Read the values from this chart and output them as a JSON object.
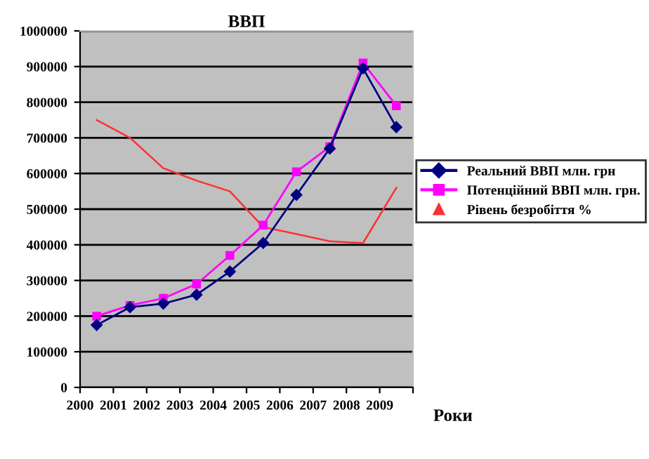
{
  "chart_data": {
    "type": "line",
    "title": "ВВП",
    "xlabel": "Роки",
    "xlim": [
      2000,
      2010
    ],
    "xticks": [
      2000,
      2001,
      2002,
      2003,
      2004,
      2005,
      2006,
      2007,
      2008,
      2009,
      {
        "value": 2010,
        "label": null
      }
    ],
    "ylim": [
      0,
      1000000
    ],
    "yticks": [
      0,
      100000,
      200000,
      300000,
      400000,
      500000,
      600000,
      700000,
      800000,
      900000,
      1000000
    ],
    "grid": "y",
    "legend": "right",
    "series": [
      {
        "name": "Реальний ВВП млн. грн",
        "color": "#000080",
        "marker": "diamond",
        "x": [
          2000.5,
          2001.5,
          2002.5,
          2003.5,
          2004.5,
          2005.5,
          2006.5,
          2007.5,
          2008.5,
          2009.5
        ],
        "values": [
          175000,
          225000,
          235000,
          260000,
          325000,
          405000,
          540000,
          670000,
          895000,
          730000
        ]
      },
      {
        "name": "Потенційний ВВП млн. грн.",
        "color": "#ff00ff",
        "marker": "square",
        "x": [
          2000.5,
          2001.5,
          2002.5,
          2003.5,
          2004.5,
          2005.5,
          2006.5,
          2007.5,
          2008.5,
          2009.5
        ],
        "values": [
          200000,
          230000,
          250000,
          290000,
          370000,
          455000,
          605000,
          675000,
          910000,
          790000
        ]
      },
      {
        "name": "Рівень безробіття %",
        "color": "#ff3030",
        "marker": "none",
        "x": [
          2000.5,
          2001.5,
          2002.5,
          2003.5,
          2004.5,
          2005.5,
          2006.5,
          2007.5,
          2008.5,
          2009.5
        ],
        "values": [
          750000,
          700000,
          615000,
          580000,
          550000,
          450000,
          430000,
          410000,
          405000,
          560000
        ]
      }
    ]
  }
}
